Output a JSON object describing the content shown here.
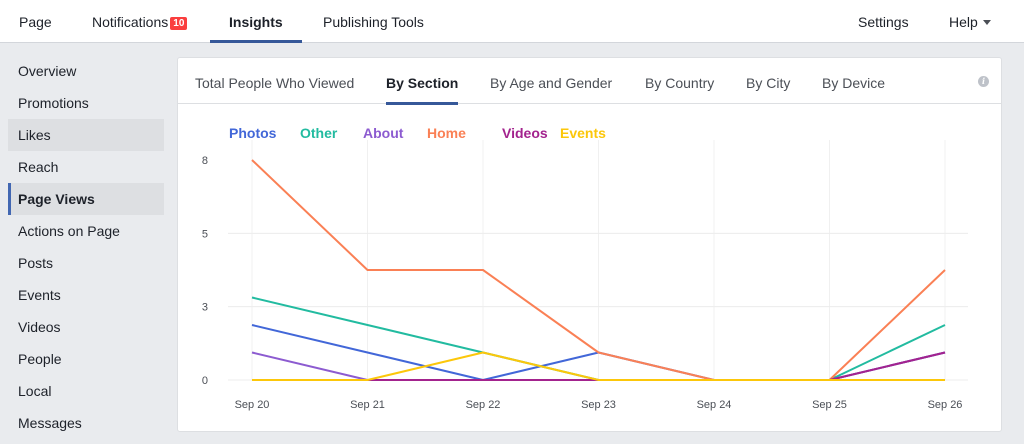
{
  "topnav": {
    "items": [
      {
        "label": "Page"
      },
      {
        "label": "Notifications",
        "badge": "10"
      },
      {
        "label": "Insights"
      },
      {
        "label": "Publishing Tools"
      }
    ],
    "settings": "Settings",
    "help": "Help"
  },
  "sidebar": {
    "items": [
      {
        "label": "Overview"
      },
      {
        "label": "Promotions"
      },
      {
        "label": "Likes"
      },
      {
        "label": "Reach"
      },
      {
        "label": "Page Views"
      },
      {
        "label": "Actions on Page"
      },
      {
        "label": "Posts"
      },
      {
        "label": "Events"
      },
      {
        "label": "Videos"
      },
      {
        "label": "People"
      },
      {
        "label": "Local"
      },
      {
        "label": "Messages"
      }
    ],
    "active": "Page Views"
  },
  "tabs": [
    {
      "label": "Total People Who Viewed"
    },
    {
      "label": "By Section"
    },
    {
      "label": "By Age and Gender"
    },
    {
      "label": "By Country"
    },
    {
      "label": "By City"
    },
    {
      "label": "By Device"
    }
  ],
  "info_icon": "i",
  "chart_data": {
    "type": "line",
    "categories": [
      "Sep 20",
      "Sep 21",
      "Sep 22",
      "Sep 23",
      "Sep 24",
      "Sep 25",
      "Sep 26"
    ],
    "yticks": [
      0,
      3,
      5,
      8
    ],
    "ylim": [
      0,
      8
    ],
    "grid": true,
    "legend_position": "top-left",
    "series": [
      {
        "name": "Photos",
        "color": "#4267d8",
        "values": [
          2,
          1,
          0,
          1,
          0,
          0,
          1
        ]
      },
      {
        "name": "Other",
        "color": "#22bba0",
        "values": [
          3,
          2,
          1,
          0,
          0,
          0,
          2
        ]
      },
      {
        "name": "About",
        "color": "#8c5bd0",
        "values": [
          1,
          0,
          0,
          0,
          0,
          0,
          1
        ]
      },
      {
        "name": "Home",
        "color": "#fa8055",
        "values": [
          8,
          4,
          4,
          1,
          0,
          0,
          4
        ]
      },
      {
        "name": "Videos",
        "color": "#a3238e",
        "values": [
          0,
          0,
          0,
          0,
          0,
          0,
          1
        ]
      },
      {
        "name": "Events",
        "color": "#fcc70a",
        "values": [
          0,
          0,
          1,
          0,
          0,
          0,
          0
        ]
      }
    ]
  }
}
